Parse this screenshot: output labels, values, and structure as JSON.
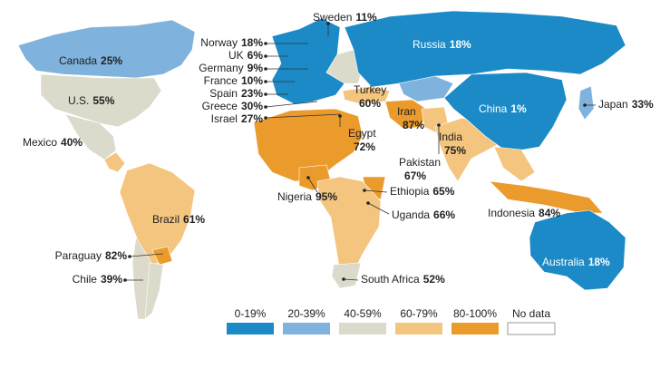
{
  "labels": [
    {
      "name": "Sweden",
      "value": "11%"
    },
    {
      "name": "Norway",
      "value": "18%"
    },
    {
      "name": "UK",
      "value": "6%"
    },
    {
      "name": "Germany",
      "value": "9%"
    },
    {
      "name": "France",
      "value": "10%"
    },
    {
      "name": "Spain",
      "value": "23%"
    },
    {
      "name": "Greece",
      "value": "30%"
    },
    {
      "name": "Israel",
      "value": "27%"
    },
    {
      "name": "Canada",
      "value": "25%"
    },
    {
      "name": "U.S.",
      "value": "55%"
    },
    {
      "name": "Mexico",
      "value": "40%"
    },
    {
      "name": "Russia",
      "value": "18%"
    },
    {
      "name": "Turkey",
      "value": "60%"
    },
    {
      "name": "Iran",
      "value": "87%"
    },
    {
      "name": "China",
      "value": "1%"
    },
    {
      "name": "Japan",
      "value": "33%"
    },
    {
      "name": "Egypt",
      "value": "72%"
    },
    {
      "name": "India",
      "value": "75%"
    },
    {
      "name": "Pakistan",
      "value": "67%"
    },
    {
      "name": "Nigeria",
      "value": "95%"
    },
    {
      "name": "Ethiopia",
      "value": "65%"
    },
    {
      "name": "Uganda",
      "value": "66%"
    },
    {
      "name": "Brazil",
      "value": "61%"
    },
    {
      "name": "Indonesia",
      "value": "84%"
    },
    {
      "name": "Paraguay",
      "value": "82%"
    },
    {
      "name": "Chile",
      "value": "39%"
    },
    {
      "name": "South Africa",
      "value": "52%"
    },
    {
      "name": "Australia",
      "value": "18%"
    }
  ],
  "legend": [
    {
      "label": "0-19%",
      "color": "#1b8ac6"
    },
    {
      "label": "20-39%",
      "color": "#7fb2dc"
    },
    {
      "label": "40-59%",
      "color": "#dcdacb"
    },
    {
      "label": "60-79%",
      "color": "#f4c57f"
    },
    {
      "label": "80-100%",
      "color": "#eb9a2c"
    },
    {
      "label": "No data",
      "color": "#ffffff"
    }
  ]
}
